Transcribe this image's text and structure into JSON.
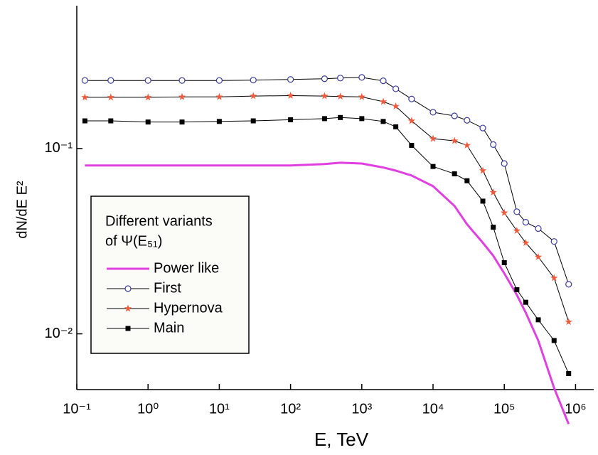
{
  "chart_data": {
    "type": "line",
    "x_label": "E, TeV",
    "y_label": "dN/dE E²",
    "log_x": true,
    "log_y": true,
    "xlim": [
      0.1,
      1800000
    ],
    "ylim": [
      0.005,
      0.59
    ],
    "xticks": [
      {
        "value": 0.1,
        "label": "10⁻¹"
      },
      {
        "value": 1,
        "label": "10⁰"
      },
      {
        "value": 10,
        "label": "10¹"
      },
      {
        "value": 100,
        "label": "10²"
      },
      {
        "value": 1000,
        "label": "10³"
      },
      {
        "value": 10000,
        "label": "10⁴"
      },
      {
        "value": 100000,
        "label": "10⁵"
      },
      {
        "value": 1000000,
        "label": "10⁶"
      }
    ],
    "yticks": [
      {
        "value": 0.01,
        "label": "10⁻²"
      },
      {
        "value": 0.1,
        "label": "10⁻¹"
      }
    ],
    "grid": false,
    "legend_title": [
      "Different variants",
      "of Ψ(E₅₁)"
    ],
    "legend_position": "lower left",
    "x": [
      0.13,
      0.3,
      1,
      3,
      10,
      30,
      100,
      300,
      500,
      1000,
      2000,
      3000,
      5000,
      10000,
      20000,
      30000,
      50000,
      70000,
      100000,
      150000,
      200000,
      300000,
      500000,
      800000
    ],
    "series": [
      {
        "name": "Power like",
        "color": "#e040e0",
        "marker": "none",
        "line_color": "#e040e0",
        "values": [
          0.081,
          0.081,
          0.081,
          0.081,
          0.081,
          0.081,
          0.081,
          0.0824,
          0.0838,
          0.083,
          0.079,
          0.076,
          0.0715,
          0.0626,
          0.049,
          0.039,
          0.031,
          0.0264,
          0.0212,
          0.0162,
          0.013,
          0.0092,
          0.0051,
          0.00326
        ]
      },
      {
        "name": "First",
        "color": "#3a3a9a",
        "marker": "circle",
        "line_color": "#000000",
        "values": [
          0.233,
          0.233,
          0.233,
          0.233,
          0.233,
          0.234,
          0.236,
          0.238,
          0.24,
          0.242,
          0.232,
          0.21,
          0.185,
          0.157,
          0.15,
          0.142,
          0.129,
          0.105,
          0.083,
          0.0456,
          0.04,
          0.037,
          0.0315,
          0.0185
        ]
      },
      {
        "name": "Hypernova",
        "color": "#f05a3c",
        "marker": "star",
        "line_color": "#000000",
        "values": [
          0.189,
          0.189,
          0.189,
          0.19,
          0.19,
          0.192,
          0.193,
          0.192,
          0.191,
          0.19,
          0.179,
          0.169,
          0.141,
          0.113,
          0.11,
          0.104,
          0.076,
          0.058,
          0.045,
          0.036,
          0.031,
          0.026,
          0.02,
          0.0116
        ]
      },
      {
        "name": "Main",
        "color": "#000000",
        "marker": "square",
        "line_color": "#000000",
        "values": [
          0.141,
          0.141,
          0.139,
          0.139,
          0.14,
          0.141,
          0.143,
          0.145,
          0.147,
          0.145,
          0.14,
          0.131,
          0.104,
          0.08,
          0.073,
          0.067,
          0.052,
          0.0376,
          0.0242,
          0.0173,
          0.0148,
          0.0119,
          0.0092,
          0.0061
        ]
      }
    ]
  }
}
